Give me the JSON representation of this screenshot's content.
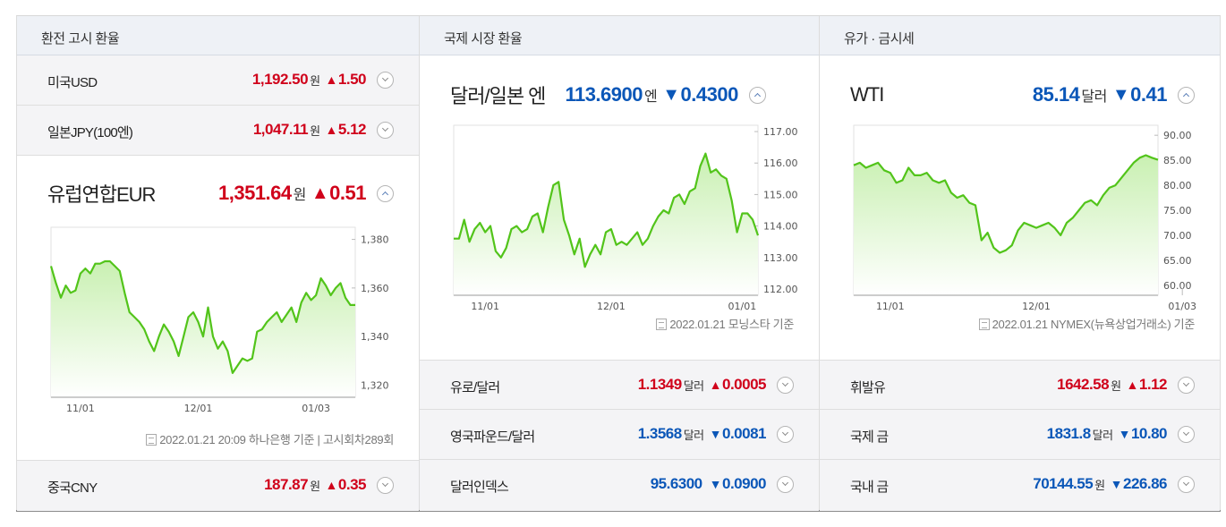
{
  "columns": {
    "c1_title": "환전 고시 환율",
    "c2_title": "국제 시장 환율",
    "c3_title": "유가 · 금시세"
  },
  "exchange": {
    "usd": {
      "name": "미국USD",
      "value": "1,192.50",
      "unit": "원",
      "arrow": "▲",
      "change": "1.50"
    },
    "jpy": {
      "name": "일본JPY(100엔)",
      "value": "1,047.11",
      "unit": "원",
      "arrow": "▲",
      "change": "5.12"
    },
    "eur": {
      "name": "유럽연합EUR",
      "value": "1,351.64",
      "unit": "원",
      "arrow": "▲",
      "change": "0.51"
    },
    "cny": {
      "name": "중국CNY",
      "value": "187.87",
      "unit": "원",
      "arrow": "▲",
      "change": "0.35"
    },
    "source": "2022.01.21 20:09 하나은행 기준 | 고시회차289회"
  },
  "market": {
    "usdjpy": {
      "name": "달러/일본 엔",
      "value": "113.6900",
      "unit": "엔",
      "arrow": "▼",
      "change": "0.4300"
    },
    "eurusd": {
      "name": "유로/달러",
      "value": "1.1349",
      "unit": "달러",
      "arrow": "▲",
      "change": "0.0005"
    },
    "gbpusd": {
      "name": "영국파운드/달러",
      "value": "1.3568",
      "unit": "달러",
      "arrow": "▼",
      "change": "0.0081"
    },
    "dxy": {
      "name": "달러인덱스",
      "value": "95.6300",
      "unit": "",
      "arrow": "▼",
      "change": "0.0900"
    },
    "source": "2022.01.21 모닝스타 기준"
  },
  "commodity": {
    "wti": {
      "name": "WTI",
      "value": "85.14",
      "unit": "달러",
      "arrow": "▼",
      "change": "0.41"
    },
    "gasoline": {
      "name": "휘발유",
      "value": "1642.58",
      "unit": "원",
      "arrow": "▲",
      "change": "1.12"
    },
    "intl_gold": {
      "name": "국제 금",
      "value": "1831.8",
      "unit": "달러",
      "arrow": "▼",
      "change": "10.80"
    },
    "dom_gold": {
      "name": "국내 금",
      "value": "70144.55",
      "unit": "원",
      "arrow": "▼",
      "change": "226.86"
    },
    "source": "2022.01.21 NYMEX(뉴욕상업거래소) 기준"
  },
  "colors": {
    "up": "#d0021b",
    "down": "#0b57b8",
    "line": "#52c41a",
    "fill": "#c9f0b2"
  },
  "chart_data": [
    {
      "type": "area",
      "series_name": "EUR",
      "ylim": [
        1315,
        1385
      ],
      "yticks": [
        1320,
        1340,
        1360,
        1380
      ],
      "ytick_labels": [
        "1,320",
        "1,340",
        "1,360",
        "1,380"
      ],
      "xtick_labels": [
        "11/01",
        "12/01",
        "01/03"
      ],
      "xtick_index": [
        6,
        30,
        54
      ],
      "values": [
        1369,
        1362,
        1356,
        1361,
        1358,
        1359,
        1366,
        1368,
        1366,
        1370,
        1370,
        1371,
        1371,
        1369,
        1367,
        1358,
        1350,
        1348,
        1346,
        1343,
        1338,
        1334,
        1340,
        1345,
        1342,
        1338,
        1332,
        1340,
        1348,
        1350,
        1346,
        1340,
        1352,
        1340,
        1335,
        1338,
        1334,
        1325,
        1328,
        1331,
        1330,
        1331,
        1342,
        1343,
        1346,
        1348,
        1350,
        1346,
        1349,
        1352,
        1346,
        1354,
        1358,
        1355,
        1357,
        1364,
        1361,
        1357,
        1360,
        1362,
        1356,
        1353,
        1353
      ]
    },
    {
      "type": "area",
      "series_name": "USD/JPY",
      "ylim": [
        111.8,
        117.2
      ],
      "yticks": [
        112,
        113,
        114,
        115,
        116,
        117
      ],
      "ytick_labels": [
        "112.00",
        "113.00",
        "114.00",
        "115.00",
        "116.00",
        "117.00"
      ],
      "xtick_labels": [
        "11/01",
        "12/01",
        "01/01"
      ],
      "xtick_index": [
        6,
        30,
        55
      ],
      "values": [
        113.6,
        113.6,
        114.2,
        113.5,
        113.9,
        114.1,
        113.8,
        114.0,
        113.2,
        113.0,
        113.3,
        113.9,
        114.0,
        113.8,
        113.9,
        114.3,
        114.4,
        113.8,
        114.6,
        115.3,
        115.4,
        114.2,
        113.7,
        113.1,
        113.6,
        112.7,
        113.1,
        113.4,
        113.1,
        113.8,
        113.9,
        113.4,
        113.5,
        113.4,
        113.6,
        113.8,
        113.4,
        113.6,
        114.0,
        114.3,
        114.5,
        114.4,
        114.9,
        115.0,
        114.7,
        115.1,
        115.2,
        115.9,
        116.3,
        115.7,
        115.8,
        115.6,
        115.5,
        114.8,
        113.8,
        114.4,
        114.4,
        114.2,
        113.7
      ]
    },
    {
      "type": "area",
      "series_name": "WTI",
      "ylim": [
        58,
        92
      ],
      "yticks": [
        60,
        65,
        70,
        75,
        80,
        85,
        90
      ],
      "ytick_labels": [
        "60.00",
        "65.00",
        "70.00",
        "75.00",
        "80.00",
        "85.00",
        "90.00"
      ],
      "xtick_labels": [
        "11/01",
        "12/01",
        "01/03"
      ],
      "xtick_index": [
        6,
        30,
        54
      ],
      "values": [
        84.0,
        84.5,
        83.5,
        84.0,
        84.5,
        83.0,
        82.5,
        80.5,
        81.0,
        83.5,
        82.0,
        82.0,
        82.5,
        81.0,
        80.5,
        81.0,
        78.5,
        77.5,
        78.0,
        76.5,
        76.0,
        69.0,
        70.5,
        67.5,
        66.5,
        67.0,
        68.0,
        71.0,
        72.5,
        72.0,
        71.5,
        72.0,
        72.5,
        71.5,
        70.0,
        72.5,
        73.5,
        75.0,
        76.5,
        77.0,
        76.0,
        78.0,
        79.5,
        80.0,
        81.5,
        83.0,
        84.5,
        85.5,
        86.0,
        85.5,
        85.1
      ]
    }
  ]
}
